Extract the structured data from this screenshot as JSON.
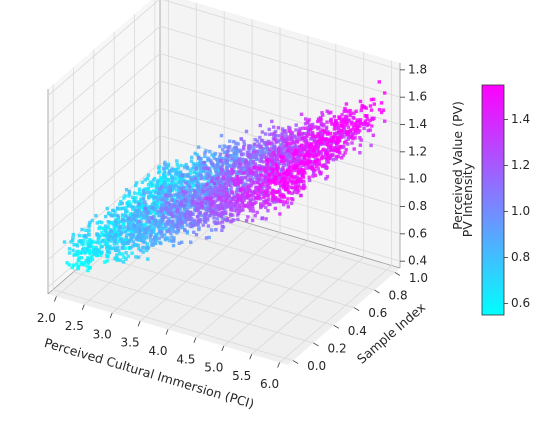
{
  "chart_data": {
    "type": "scatter",
    "projection": "3d",
    "x_axis": {
      "label": "Perceived Cultural Immersion (PCI)",
      "ticks": [
        2.0,
        2.5,
        3.0,
        3.5,
        4.0,
        4.5,
        5.0,
        5.5,
        6.0
      ],
      "tick_labels": [
        "2.0",
        "2.5",
        "3.0",
        "3.5",
        "4.0",
        "4.5",
        "5.0",
        "5.5",
        "6.0"
      ],
      "range": [
        1.85,
        6.15
      ]
    },
    "y_axis": {
      "label": "Sample Index",
      "ticks": [
        0.0,
        0.2,
        0.4,
        0.6,
        0.8,
        1.0
      ],
      "tick_labels": [
        "0.0",
        "0.2",
        "0.4",
        "0.6",
        "0.8",
        "1.0"
      ],
      "range": [
        -0.05,
        1.05
      ]
    },
    "z_axis": {
      "label": "Perceived Value (PV)",
      "ticks": [
        0.4,
        0.6,
        0.8,
        1.0,
        1.2,
        1.4,
        1.6,
        1.8
      ],
      "tick_labels": [
        "0.4",
        "0.6",
        "0.8",
        "1.0",
        "1.2",
        "1.4",
        "1.6",
        "1.8"
      ],
      "range": [
        0.35,
        1.85
      ]
    },
    "colorbar": {
      "label": "PV Intensity",
      "colormap": "cool",
      "ticks": [
        0.6,
        0.8,
        1.0,
        1.2,
        1.4
      ],
      "tick_labels": [
        "0.6",
        "0.8",
        "1.0",
        "1.2",
        "1.4"
      ],
      "range": [
        0.55,
        1.55
      ],
      "color_low": "#00ffff",
      "color_high": "#ff00ff"
    },
    "series": [
      {
        "marker": "square",
        "relation": "PV rises roughly linearly with PCI",
        "x_range": [
          2.0,
          6.0
        ],
        "y_range": [
          0.0,
          1.0
        ],
        "pv_at_pci_2": 0.55,
        "pv_at_pci_6": 1.55,
        "pv_spread": 0.15,
        "point_count": 3500
      }
    ],
    "grid": true
  }
}
